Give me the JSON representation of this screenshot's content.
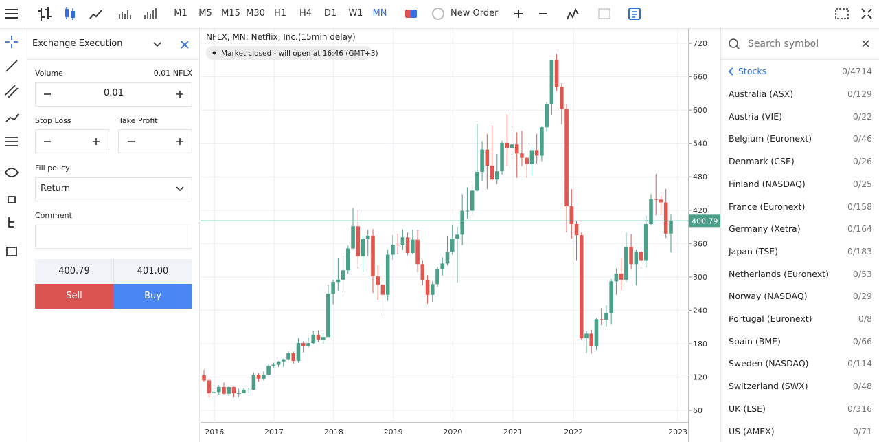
{
  "toolbar": {
    "timeframes": [
      "M1",
      "M5",
      "M15",
      "M30",
      "H1",
      "H4",
      "D1",
      "W1",
      "MN"
    ],
    "active_timeframe": 8,
    "new_order": "New Order"
  },
  "order_panel": {
    "title": "Exchange Execution",
    "volume_label": "Volume",
    "volume_unit": "0.01 NFLX",
    "volume": "0.01",
    "stop_loss": "Stop Loss",
    "take_profit": "Take Profit",
    "fill_policy_label": "Fill policy",
    "fill_policy": "Return",
    "comment": "Comment",
    "bid": "400.79",
    "ask": "401.00",
    "sell": "Sell",
    "buy": "Buy"
  },
  "chart_data": {
    "type": "candlestick",
    "title": "NFLX, MN: Netflix, Inc.(15min delay)",
    "status": "Market closed - will open at 16:46 (GMT+3)",
    "up_color": "#4c9f89",
    "down_color": "#e0574f",
    "grid": true,
    "ylim": [
      37.8,
      746
    ],
    "yticks": [
      60,
      120,
      180,
      240,
      300,
      360,
      420,
      480,
      540,
      600,
      660,
      720
    ],
    "xlim": [
      -0.7,
      97.6
    ],
    "xticks": [
      {
        "value": 2.1,
        "label": "2016"
      },
      {
        "value": 14.1,
        "label": "2017"
      },
      {
        "value": 26.1,
        "label": "2018"
      },
      {
        "value": 38.1,
        "label": "2019"
      },
      {
        "value": 50.1,
        "label": "2020"
      },
      {
        "value": 62.2,
        "label": "2021"
      },
      {
        "value": 74.4,
        "label": "2022"
      },
      {
        "value": 95.4,
        "label": "2023"
      }
    ],
    "candles": [
      [
        123,
        133,
        112,
        114
      ],
      [
        114,
        117,
        83,
        91
      ],
      [
        91,
        100,
        85,
        93
      ],
      [
        93,
        105,
        88,
        102
      ],
      [
        102,
        110,
        89,
        90
      ],
      [
        90,
        103,
        86,
        102
      ],
      [
        102,
        103,
        84,
        91
      ],
      [
        91,
        99,
        84,
        91
      ],
      [
        91,
        100,
        91,
        97
      ],
      [
        97,
        101,
        91,
        97
      ],
      [
        97,
        128,
        96,
        124
      ],
      [
        124,
        127,
        112,
        117
      ],
      [
        117,
        130,
        114,
        124
      ],
      [
        124,
        143,
        123,
        140
      ],
      [
        140,
        146,
        136,
        142
      ],
      [
        142,
        149,
        138,
        148
      ],
      [
        148,
        153,
        138,
        152
      ],
      [
        152,
        166,
        150,
        163
      ],
      [
        163,
        166,
        144,
        149
      ],
      [
        149,
        190,
        146,
        181
      ],
      [
        181,
        184,
        164,
        175
      ],
      [
        175,
        191,
        173,
        181
      ],
      [
        181,
        203,
        179,
        196
      ],
      [
        196,
        204,
        183,
        187
      ],
      [
        187,
        199,
        180,
        192
      ],
      [
        192,
        286,
        192,
        270
      ],
      [
        270,
        295,
        251,
        291
      ],
      [
        291,
        333,
        275,
        295
      ],
      [
        295,
        338,
        272,
        312
      ],
      [
        312,
        356,
        306,
        351
      ],
      [
        351,
        424,
        350,
        391
      ],
      [
        391,
        420,
        315,
        337
      ],
      [
        337,
        374,
        309,
        368
      ],
      [
        368,
        385,
        337,
        374
      ],
      [
        374,
        386,
        271,
        301
      ],
      [
        301,
        321,
        259,
        286
      ],
      [
        286,
        298,
        231,
        268
      ],
      [
        268,
        349,
        257,
        340
      ],
      [
        340,
        375,
        331,
        358
      ],
      [
        358,
        378,
        341,
        357
      ],
      [
        357,
        385,
        349,
        371
      ],
      [
        371,
        380,
        339,
        343
      ],
      [
        343,
        385,
        341,
        367
      ],
      [
        367,
        385,
        309,
        323
      ],
      [
        323,
        330,
        285,
        294
      ],
      [
        294,
        303,
        252,
        268
      ],
      [
        268,
        292,
        254,
        287
      ],
      [
        287,
        318,
        282,
        314
      ],
      [
        314,
        335,
        302,
        324
      ],
      [
        324,
        373,
        321,
        345
      ],
      [
        345,
        393,
        340,
        369
      ],
      [
        369,
        390,
        290,
        376
      ],
      [
        376,
        449,
        357,
        419
      ],
      [
        419,
        461,
        405,
        419
      ],
      [
        419,
        466,
        410,
        455
      ],
      [
        455,
        575,
        454,
        489
      ],
      [
        489,
        544,
        472,
        529
      ],
      [
        529,
        557,
        458,
        500
      ],
      [
        500,
        572,
        473,
        475
      ],
      [
        475,
        521,
        467,
        490
      ],
      [
        490,
        545,
        484,
        541
      ],
      [
        541,
        593,
        499,
        532
      ],
      [
        532,
        565,
        520,
        538
      ],
      [
        538,
        560,
        478,
        522
      ],
      [
        522,
        563,
        499,
        514
      ],
      [
        514,
        516,
        478,
        503
      ],
      [
        503,
        533,
        482,
        528
      ],
      [
        528,
        557,
        504,
        518
      ],
      [
        518,
        570,
        508,
        569
      ],
      [
        569,
        615,
        561,
        610
      ],
      [
        610,
        690,
        591,
        690
      ],
      [
        690,
        701,
        634,
        642
      ],
      [
        642,
        648,
        574,
        602
      ],
      [
        602,
        610,
        380,
        427
      ],
      [
        427,
        458,
        369,
        395
      ],
      [
        395,
        400,
        330,
        375
      ],
      [
        375,
        380,
        187,
        190
      ],
      [
        190,
        203,
        163,
        198
      ],
      [
        198,
        205,
        162,
        175
      ],
      [
        175,
        226,
        169,
        224
      ],
      [
        224,
        244,
        213,
        223
      ],
      [
        223,
        249,
        211,
        235
      ],
      [
        235,
        296,
        214,
        292
      ],
      [
        292,
        315,
        268,
        306
      ],
      [
        306,
        333,
        276,
        295
      ],
      [
        295,
        380,
        291,
        354
      ],
      [
        354,
        377,
        313,
        323
      ],
      [
        323,
        349,
        285,
        345
      ],
      [
        345,
        346,
        315,
        330
      ],
      [
        330,
        410,
        317,
        395
      ],
      [
        395,
        449,
        392,
        440
      ],
      [
        440,
        485,
        411,
        439
      ],
      [
        439,
        446,
        411,
        434
      ],
      [
        434,
        458,
        370,
        378
      ],
      [
        378,
        412,
        344,
        400.79
      ]
    ]
  },
  "symbols": {
    "search": "Search symbol",
    "group": "Stocks",
    "group_count": "0/4714",
    "items": [
      [
        "Australia (ASX)",
        "0/129"
      ],
      [
        "Austria (VIE)",
        "0/22"
      ],
      [
        "Belgium (Euronext)",
        "0/46"
      ],
      [
        "Denmark (CSE)",
        "0/26"
      ],
      [
        "Finland (NASDAQ)",
        "0/25"
      ],
      [
        "France (Euronext)",
        "0/158"
      ],
      [
        "Germany (Xetra)",
        "0/164"
      ],
      [
        "Japan (TSE)",
        "0/183"
      ],
      [
        "Netherlands (Euronext)",
        "0/53"
      ],
      [
        "Norway (NASDAQ)",
        "0/29"
      ],
      [
        "Portugal (Euronext)",
        "0/8"
      ],
      [
        "Spain (BME)",
        "0/66"
      ],
      [
        "Sweden (NASDAQ)",
        "0/114"
      ],
      [
        "Switzerland (SWX)",
        "0/48"
      ],
      [
        "UK (LSE)",
        "0/316"
      ],
      [
        "US (AMEX)",
        "0/71"
      ]
    ]
  }
}
